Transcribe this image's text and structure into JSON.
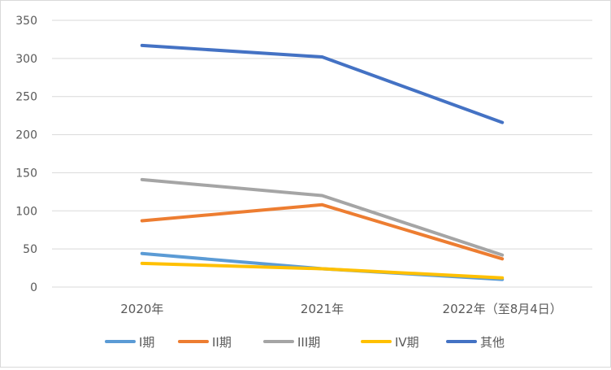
{
  "chart_data": {
    "type": "line",
    "title": "",
    "xlabel": "",
    "ylabel": "",
    "categories": [
      "2020年",
      "2021年",
      "2022年（至8月4日）"
    ],
    "ylim": [
      0,
      350
    ],
    "yticks": [
      0,
      50,
      100,
      150,
      200,
      250,
      300,
      350
    ],
    "grid": true,
    "legend_position": "bottom",
    "series": [
      {
        "name": "I期",
        "values": [
          44,
          24,
          10
        ],
        "color": "#5b9bd5"
      },
      {
        "name": "II期",
        "values": [
          87,
          108,
          37
        ],
        "color": "#ed7d31"
      },
      {
        "name": "III期",
        "values": [
          141,
          120,
          42
        ],
        "color": "#a5a5a5"
      },
      {
        "name": "IV期",
        "values": [
          31,
          24,
          12
        ],
        "color": "#ffc000"
      },
      {
        "name": "其他",
        "values": [
          317,
          302,
          216
        ],
        "color": "#4472c4"
      }
    ]
  }
}
